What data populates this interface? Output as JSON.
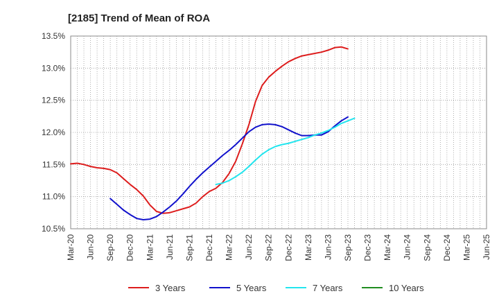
{
  "chart_data": {
    "type": "line",
    "title": "[2185]  Trend of Mean of ROA",
    "xlabel": "",
    "ylabel": "",
    "ylim": [
      10.5,
      13.5
    ],
    "yticks": [
      "13.5%",
      "13.0%",
      "12.5%",
      "12.0%",
      "11.5%",
      "11.0%",
      "10.5%"
    ],
    "ytick_values": [
      13.5,
      13.0,
      12.5,
      12.0,
      11.5,
      11.0,
      10.5
    ],
    "x_categories": [
      "Mar-20",
      "Jun-20",
      "Sep-20",
      "Dec-20",
      "Mar-21",
      "Jun-21",
      "Sep-21",
      "Dec-21",
      "Mar-22",
      "Jun-22",
      "Sep-22",
      "Dec-22",
      "Mar-23",
      "Jun-23",
      "Sep-23",
      "Dec-23",
      "Mar-24",
      "Jun-24",
      "Sep-24",
      "Dec-24",
      "Mar-25",
      "Jun-25"
    ],
    "grid": true,
    "legend_position": "bottom",
    "series": [
      {
        "name": "3 Years",
        "color": "#dd1c1c",
        "start_index": 0,
        "values": [
          11.51,
          11.52,
          11.5,
          11.47,
          11.45,
          11.44,
          11.42,
          11.37,
          11.28,
          11.19,
          11.11,
          11.01,
          10.87,
          10.77,
          10.74,
          10.75,
          10.78,
          10.81,
          10.84,
          10.9,
          11.0,
          11.08,
          11.13,
          11.22,
          11.36,
          11.55,
          11.82,
          12.12,
          12.48,
          12.73,
          12.86,
          12.95,
          13.03,
          13.1,
          13.15,
          13.19,
          13.21,
          13.23,
          13.25,
          13.28,
          13.32,
          13.33,
          13.3
        ]
      },
      {
        "name": "5 Years",
        "color": "#1111cc",
        "start_index": 6,
        "values": [
          10.97,
          10.88,
          10.79,
          10.72,
          10.66,
          10.64,
          10.65,
          10.69,
          10.76,
          10.84,
          10.93,
          11.04,
          11.16,
          11.27,
          11.37,
          11.46,
          11.55,
          11.64,
          11.72,
          11.81,
          11.91,
          12.01,
          12.08,
          12.12,
          12.13,
          12.12,
          12.09,
          12.04,
          11.99,
          11.95,
          11.95,
          11.96,
          11.96,
          12.01,
          12.1,
          12.18,
          12.24
        ]
      },
      {
        "name": "7 Years",
        "color": "#22e5ee",
        "start_index": 22,
        "values": [
          11.19,
          11.21,
          11.25,
          11.31,
          11.38,
          11.47,
          11.57,
          11.66,
          11.73,
          11.78,
          11.81,
          11.83,
          11.86,
          11.89,
          11.92,
          11.96,
          11.99,
          12.03,
          12.08,
          12.14,
          12.18,
          12.22
        ]
      },
      {
        "name": "10 Years",
        "color": "#1f8c1f",
        "start_index": 0,
        "values": []
      }
    ]
  }
}
